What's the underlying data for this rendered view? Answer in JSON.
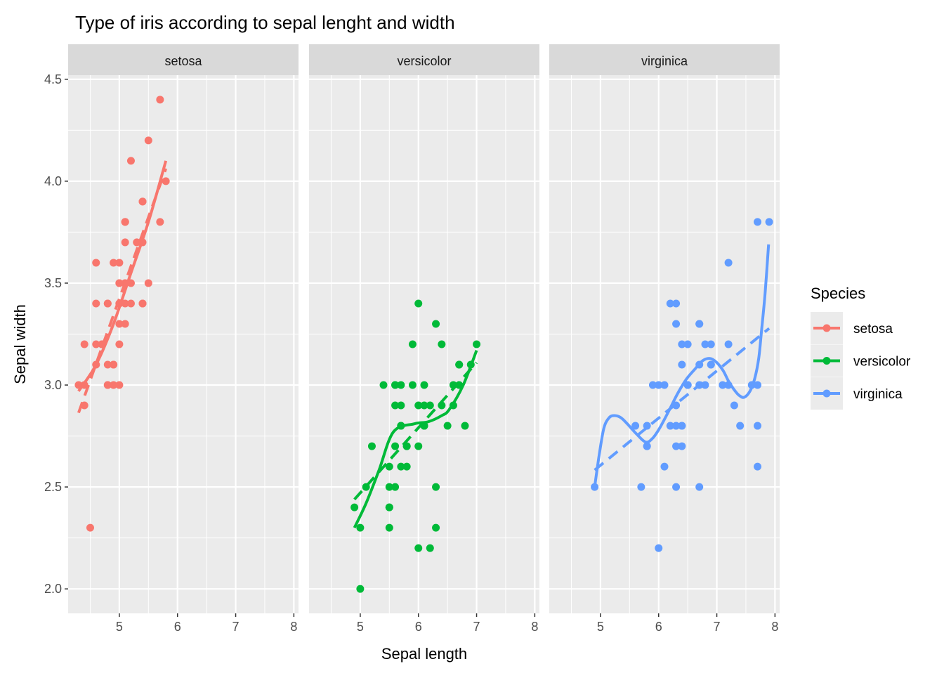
{
  "chart_data": {
    "type": "scatter",
    "title": "Type of iris according to sepal lenght and width",
    "xlabel": "Sepal length",
    "ylabel": "Sepal width",
    "xlim": [
      4.12,
      8.08
    ],
    "ylim": [
      1.88,
      4.52
    ],
    "x_ticks": [
      5,
      6,
      7,
      8
    ],
    "y_ticks": [
      2.0,
      2.5,
      3.0,
      3.5,
      4.0,
      4.5
    ],
    "y_tick_labels": [
      "2.0",
      "2.5",
      "3.0",
      "3.5",
      "4.0",
      "4.5"
    ],
    "grid": true,
    "legend": {
      "title": "Species",
      "placement": "right"
    },
    "facets": [
      {
        "name": "setosa",
        "color": "#F8766D",
        "points": [
          [
            5.1,
            3.5
          ],
          [
            4.9,
            3.0
          ],
          [
            4.7,
            3.2
          ],
          [
            4.6,
            3.1
          ],
          [
            5.0,
            3.6
          ],
          [
            5.4,
            3.9
          ],
          [
            4.6,
            3.4
          ],
          [
            5.0,
            3.4
          ],
          [
            4.4,
            2.9
          ],
          [
            4.9,
            3.1
          ],
          [
            5.4,
            3.7
          ],
          [
            4.8,
            3.4
          ],
          [
            4.8,
            3.0
          ],
          [
            4.3,
            3.0
          ],
          [
            5.8,
            4.0
          ],
          [
            5.7,
            4.4
          ],
          [
            5.4,
            3.9
          ],
          [
            5.1,
            3.5
          ],
          [
            5.7,
            3.8
          ],
          [
            5.1,
            3.8
          ],
          [
            5.4,
            3.4
          ],
          [
            5.1,
            3.7
          ],
          [
            4.6,
            3.6
          ],
          [
            5.1,
            3.3
          ],
          [
            4.8,
            3.4
          ],
          [
            5.0,
            3.0
          ],
          [
            5.0,
            3.4
          ],
          [
            5.2,
            3.5
          ],
          [
            5.2,
            3.4
          ],
          [
            4.7,
            3.2
          ],
          [
            4.8,
            3.1
          ],
          [
            5.4,
            3.4
          ],
          [
            5.2,
            4.1
          ],
          [
            5.5,
            4.2
          ],
          [
            4.9,
            3.1
          ],
          [
            5.0,
            3.2
          ],
          [
            5.5,
            3.5
          ],
          [
            4.9,
            3.6
          ],
          [
            4.4,
            3.0
          ],
          [
            5.1,
            3.4
          ],
          [
            5.0,
            3.5
          ],
          [
            4.5,
            2.3
          ],
          [
            4.4,
            3.2
          ],
          [
            5.0,
            3.5
          ],
          [
            5.1,
            3.8
          ],
          [
            4.8,
            3.0
          ],
          [
            5.1,
            3.8
          ],
          [
            4.6,
            3.2
          ],
          [
            5.3,
            3.7
          ],
          [
            5.0,
            3.3
          ]
        ],
        "smooth": [
          [
            4.3,
            2.97
          ],
          [
            4.6,
            3.1
          ],
          [
            4.9,
            3.3
          ],
          [
            5.2,
            3.55
          ],
          [
            5.5,
            3.8
          ],
          [
            5.8,
            4.1
          ]
        ],
        "linear_fit": [
          [
            4.3,
            2.864
          ],
          [
            5.8,
            4.062
          ]
        ]
      },
      {
        "name": "versicolor",
        "color": "#00BA38",
        "points": [
          [
            7.0,
            3.2
          ],
          [
            6.4,
            3.2
          ],
          [
            6.9,
            3.1
          ],
          [
            5.5,
            2.3
          ],
          [
            6.5,
            2.8
          ],
          [
            5.7,
            2.8
          ],
          [
            6.3,
            3.3
          ],
          [
            4.9,
            2.4
          ],
          [
            6.6,
            2.9
          ],
          [
            5.2,
            2.7
          ],
          [
            5.0,
            2.0
          ],
          [
            5.9,
            3.0
          ],
          [
            6.0,
            2.2
          ],
          [
            6.1,
            2.9
          ],
          [
            5.6,
            2.9
          ],
          [
            6.7,
            3.1
          ],
          [
            5.6,
            3.0
          ],
          [
            5.8,
            2.7
          ],
          [
            6.2,
            2.2
          ],
          [
            5.6,
            2.5
          ],
          [
            5.9,
            3.2
          ],
          [
            6.1,
            2.8
          ],
          [
            6.3,
            2.5
          ],
          [
            6.1,
            2.8
          ],
          [
            6.4,
            2.9
          ],
          [
            6.6,
            3.0
          ],
          [
            6.8,
            2.8
          ],
          [
            6.7,
            3.0
          ],
          [
            6.0,
            2.9
          ],
          [
            5.7,
            2.6
          ],
          [
            5.5,
            2.4
          ],
          [
            5.5,
            2.4
          ],
          [
            5.8,
            2.7
          ],
          [
            6.0,
            2.7
          ],
          [
            5.4,
            3.0
          ],
          [
            6.0,
            3.4
          ],
          [
            6.7,
            3.1
          ],
          [
            6.3,
            2.3
          ],
          [
            5.6,
            3.0
          ],
          [
            5.5,
            2.5
          ],
          [
            5.5,
            2.6
          ],
          [
            6.1,
            3.0
          ],
          [
            5.8,
            2.6
          ],
          [
            5.0,
            2.3
          ],
          [
            5.6,
            2.7
          ],
          [
            5.7,
            3.0
          ],
          [
            5.7,
            2.9
          ],
          [
            6.2,
            2.9
          ],
          [
            5.1,
            2.5
          ],
          [
            5.7,
            2.8
          ]
        ],
        "smooth": [
          [
            4.9,
            2.3
          ],
          [
            5.1,
            2.42
          ],
          [
            5.32,
            2.58
          ],
          [
            5.57,
            2.77
          ],
          [
            5.93,
            2.81
          ],
          [
            6.17,
            2.82
          ],
          [
            6.4,
            2.85
          ],
          [
            6.53,
            2.88
          ],
          [
            6.77,
            3.0
          ],
          [
            7.0,
            3.17
          ]
        ],
        "linear_fit": [
          [
            4.9,
            2.439
          ],
          [
            7.0,
            3.11
          ]
        ]
      },
      {
        "name": "virginica",
        "color": "#619CFF",
        "points": [
          [
            6.3,
            3.3
          ],
          [
            5.8,
            2.7
          ],
          [
            7.1,
            3.0
          ],
          [
            6.3,
            2.9
          ],
          [
            6.5,
            3.0
          ],
          [
            7.6,
            3.0
          ],
          [
            4.9,
            2.5
          ],
          [
            7.3,
            2.9
          ],
          [
            6.7,
            2.5
          ],
          [
            7.2,
            3.6
          ],
          [
            6.5,
            3.2
          ],
          [
            6.4,
            2.7
          ],
          [
            6.8,
            3.0
          ],
          [
            5.7,
            2.5
          ],
          [
            5.8,
            2.8
          ],
          [
            6.4,
            3.2
          ],
          [
            6.5,
            3.0
          ],
          [
            7.7,
            3.8
          ],
          [
            7.7,
            2.6
          ],
          [
            6.0,
            2.2
          ],
          [
            6.9,
            3.2
          ],
          [
            5.6,
            2.8
          ],
          [
            7.7,
            2.8
          ],
          [
            6.3,
            2.7
          ],
          [
            6.7,
            3.3
          ],
          [
            7.2,
            3.2
          ],
          [
            6.2,
            2.8
          ],
          [
            6.1,
            3.0
          ],
          [
            6.4,
            2.8
          ],
          [
            7.2,
            3.0
          ],
          [
            7.4,
            2.8
          ],
          [
            7.9,
            3.8
          ],
          [
            6.4,
            2.8
          ],
          [
            6.3,
            2.8
          ],
          [
            6.1,
            2.6
          ],
          [
            7.7,
            3.0
          ],
          [
            6.3,
            3.4
          ],
          [
            6.4,
            3.1
          ],
          [
            6.0,
            3.0
          ],
          [
            6.9,
            3.1
          ],
          [
            6.7,
            3.1
          ],
          [
            6.9,
            3.1
          ],
          [
            5.8,
            2.7
          ],
          [
            6.8,
            3.2
          ],
          [
            6.7,
            3.3
          ],
          [
            6.7,
            3.0
          ],
          [
            6.3,
            2.5
          ],
          [
            6.5,
            3.0
          ],
          [
            6.2,
            3.4
          ],
          [
            5.9,
            3.0
          ]
        ],
        "smooth": [
          [
            4.9,
            2.5
          ],
          [
            4.98,
            2.66
          ],
          [
            5.06,
            2.79
          ],
          [
            5.15,
            2.84
          ],
          [
            5.24,
            2.85
          ],
          [
            5.35,
            2.84
          ],
          [
            5.46,
            2.81
          ],
          [
            5.62,
            2.76
          ],
          [
            5.78,
            2.72
          ],
          [
            5.9,
            2.74
          ],
          [
            6.02,
            2.79
          ],
          [
            6.17,
            2.87
          ],
          [
            6.33,
            2.96
          ],
          [
            6.48,
            3.03
          ],
          [
            6.63,
            3.08
          ],
          [
            6.76,
            3.12
          ],
          [
            6.89,
            3.13
          ],
          [
            7.0,
            3.11
          ],
          [
            7.11,
            3.07
          ],
          [
            7.2,
            3.02
          ],
          [
            7.29,
            2.98
          ],
          [
            7.38,
            2.95
          ],
          [
            7.47,
            2.94
          ],
          [
            7.57,
            2.97
          ],
          [
            7.65,
            3.03
          ],
          [
            7.72,
            3.13
          ],
          [
            7.77,
            3.27
          ],
          [
            7.83,
            3.45
          ],
          [
            7.89,
            3.69
          ]
        ],
        "linear_fit": [
          [
            4.9,
            2.583
          ],
          [
            7.9,
            3.278
          ]
        ]
      }
    ]
  }
}
